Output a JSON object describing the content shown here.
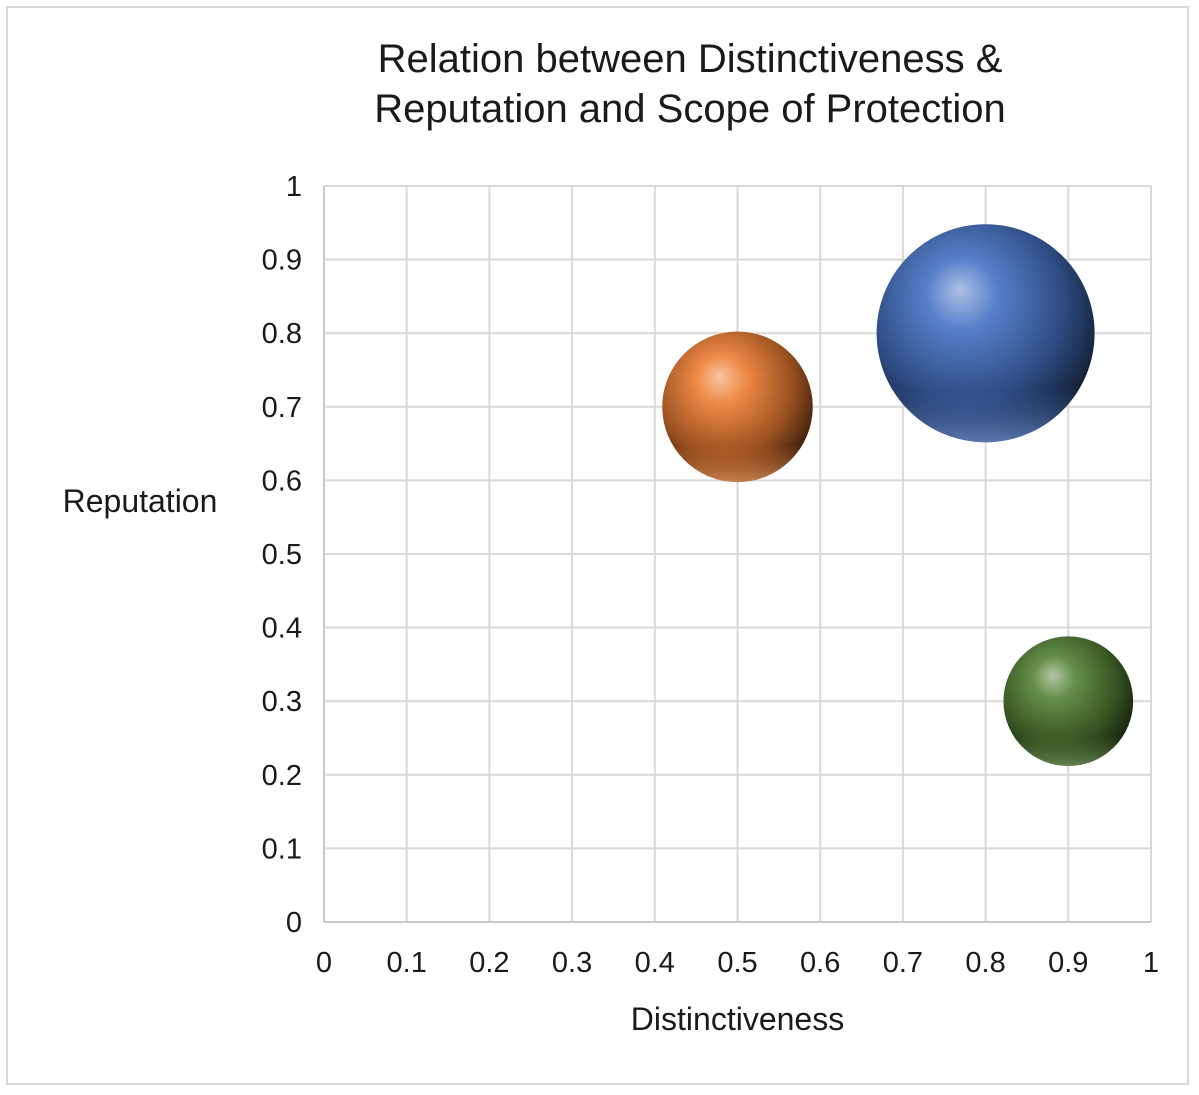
{
  "chart_data": {
    "type": "bubble",
    "title_lines": [
      "Relation between Distinctiveness &",
      "Reputation and Scope of Protection"
    ],
    "xlabel": "Distinctiveness",
    "ylabel": "Reputation",
    "xlim": [
      0,
      1
    ],
    "ylim": [
      0,
      1
    ],
    "x_ticks": [
      "0",
      "0.1",
      "0.2",
      "0.3",
      "0.4",
      "0.5",
      "0.6",
      "0.7",
      "0.8",
      "0.9",
      "1"
    ],
    "y_ticks": [
      "0",
      "0.1",
      "0.2",
      "0.3",
      "0.4",
      "0.5",
      "0.6",
      "0.7",
      "0.8",
      "0.9",
      "1"
    ],
    "grid": true,
    "legend": "none",
    "series": [
      {
        "x": 0.5,
        "y": 0.7,
        "size": 3.1,
        "color": "#ed7d31"
      },
      {
        "x": 0.8,
        "y": 0.8,
        "size": 6.5,
        "color": "#4472c4"
      },
      {
        "x": 0.9,
        "y": 0.3,
        "size": 2.3,
        "color": "#548235"
      }
    ]
  }
}
